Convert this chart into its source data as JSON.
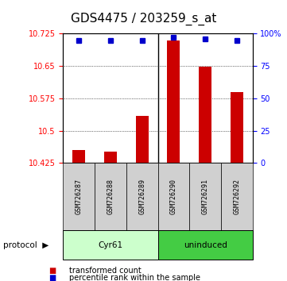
{
  "title": "GDS4475 / 203259_s_at",
  "samples": [
    "GSM726287",
    "GSM726288",
    "GSM726289",
    "GSM726290",
    "GSM726291",
    "GSM726292"
  ],
  "transformed_counts": [
    10.455,
    10.452,
    10.535,
    10.71,
    10.648,
    10.59
  ],
  "percentile_ranks": [
    95,
    95,
    95,
    97,
    96,
    95
  ],
  "ylim_left": [
    10.425,
    10.725
  ],
  "ylim_right": [
    0,
    100
  ],
  "yticks_left": [
    10.425,
    10.5,
    10.575,
    10.65,
    10.725
  ],
  "yticks_right": [
    0,
    25,
    50,
    75,
    100
  ],
  "ytick_labels_left": [
    "10.425",
    "10.5",
    "10.575",
    "10.65",
    "10.725"
  ],
  "ytick_labels_right": [
    "0",
    "25",
    "50",
    "75",
    "100%"
  ],
  "bar_color": "#cc0000",
  "dot_color": "#0000cc",
  "groups": [
    {
      "label": "Cyr61",
      "start": 0,
      "end": 3,
      "color": "#ccffcc"
    },
    {
      "label": "uninduced",
      "start": 3,
      "end": 6,
      "color": "#44cc44"
    }
  ],
  "group_row_label": "protocol",
  "background_color": "#ffffff",
  "title_fontsize": 11,
  "label_box_color": "#d0d0d0"
}
